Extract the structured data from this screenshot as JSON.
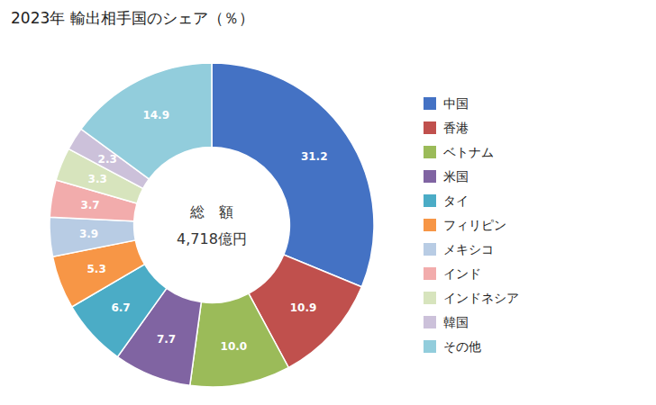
{
  "chart_data": {
    "type": "donut",
    "title": "2023年 輸出相手国のシェア（％）",
    "annotations": [
      "総　額",
      "4,718億円"
    ],
    "categories": [
      "中国",
      "香港",
      "ベトナム",
      "米国",
      "タイ",
      "フィリピン",
      "メキシコ",
      "インド",
      "インドネシア",
      "韓国",
      "その他"
    ],
    "values": [
      31.2,
      10.9,
      10.0,
      7.7,
      6.7,
      5.3,
      3.9,
      3.7,
      3.3,
      2.3,
      14.9
    ],
    "value_labels": [
      "31.2",
      "10.9",
      "10.0",
      "7.7",
      "6.7",
      "5.3",
      "3.9",
      "3.7",
      "3.3",
      "2.3",
      "14.9"
    ],
    "colors": [
      "#4472C4",
      "#C0504D",
      "#9BBB59",
      "#8064A2",
      "#4BACC6",
      "#F79646",
      "#B8CCE4",
      "#F2ACAC",
      "#D7E4BD",
      "#CCC1DA",
      "#92CDDC"
    ],
    "data_labels": true,
    "legend": "right"
  }
}
